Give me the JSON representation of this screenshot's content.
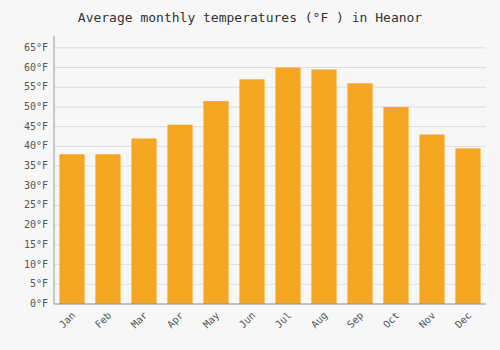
{
  "chart_data": {
    "type": "bar",
    "title": "Average monthly temperatures (°F ) in Heanor",
    "categories": [
      "Jan",
      "Feb",
      "Mar",
      "Apr",
      "May",
      "Jun",
      "Jul",
      "Aug",
      "Sep",
      "Oct",
      "Nov",
      "Dec"
    ],
    "values": [
      38,
      38,
      42,
      45.5,
      51.5,
      57,
      60,
      59.5,
      56,
      50,
      43,
      39.5
    ],
    "color": "#F5A623",
    "ylim": [
      0,
      68
    ],
    "yticks": [
      {
        "value": 0,
        "label": "0°F"
      },
      {
        "value": 5,
        "label": "5°F"
      },
      {
        "value": 10,
        "label": "10°F"
      },
      {
        "value": 15,
        "label": "15°F"
      },
      {
        "value": 20,
        "label": "20°F"
      },
      {
        "value": 25,
        "label": "25°F"
      },
      {
        "value": 30,
        "label": "30°F"
      },
      {
        "value": 35,
        "label": "35°F"
      },
      {
        "value": 40,
        "label": "40°F"
      },
      {
        "value": 45,
        "label": "45°F"
      },
      {
        "value": 50,
        "label": "50°F"
      },
      {
        "value": 55,
        "label": "55°F"
      },
      {
        "value": 60,
        "label": "60°F"
      },
      {
        "value": 65,
        "label": "65°F"
      }
    ],
    "grid": true
  }
}
